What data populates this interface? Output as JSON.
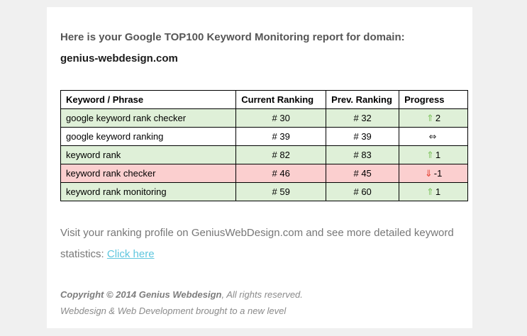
{
  "page": {
    "background": "#f0f0f0",
    "card_background": "#ffffff"
  },
  "report": {
    "intro": "Here is your Google TOP100 Keyword Monitoring report for domain:",
    "domain": "genius-webdesign.com"
  },
  "table": {
    "columns": [
      "Keyword / Phrase",
      "Current Ranking",
      "Prev. Ranking",
      "Progress"
    ],
    "rows": [
      {
        "keyword": "google keyword rank checker",
        "current": "# 30",
        "previous": "# 32",
        "arrow": "⇑",
        "value": "2",
        "trend": "up"
      },
      {
        "keyword": "google keyword ranking",
        "current": "# 39",
        "previous": "# 39",
        "arrow": "⇔",
        "value": "",
        "trend": "same"
      },
      {
        "keyword": "keyword rank",
        "current": "# 82",
        "previous": "# 83",
        "arrow": "⇑",
        "value": "1",
        "trend": "up"
      },
      {
        "keyword": "keyword rank checker",
        "current": "# 46",
        "previous": "# 45",
        "arrow": "⇓",
        "value": "-1",
        "trend": "down"
      },
      {
        "keyword": "keyword rank monitoring",
        "current": "# 59",
        "previous": "# 60",
        "arrow": "⇑",
        "value": "1",
        "trend": "up"
      }
    ],
    "colors": {
      "row_up_bg": "#dff0d8",
      "row_down_bg": "#fbcfcf",
      "row_same_bg": "#ffffff",
      "arrow_up": "#7cc25c",
      "arrow_down": "#e53e2e",
      "arrow_same": "#333333"
    }
  },
  "visit": {
    "text_before_link": "Visit your ranking profile on GeniusWebDesign.com and see more detailed keyword statistics: ",
    "link_label": "Click here",
    "link_color": "#5fc6de"
  },
  "copyright": {
    "notice_bold": "Copyright © 2014 Genius Webdesign",
    "notice_rest": ", All rights reserved.",
    "tagline": "Webdesign & Web Development brought to a new level"
  }
}
